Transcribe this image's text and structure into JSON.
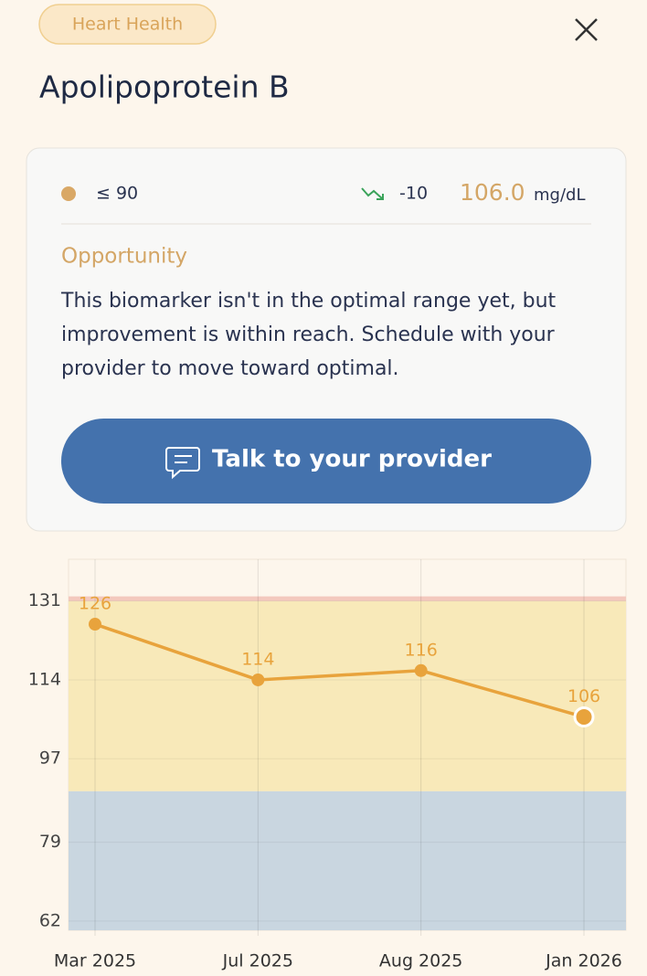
{
  "tag": "Heart Health",
  "title": "Apolipoprotein B",
  "card": {
    "range": "≤ 90",
    "change": "-10",
    "value": "106.0",
    "unit": "mg/dL",
    "status": "Opportunity",
    "message": "This biomarker isn't in the optimal range yet, but improvement is within reach. Schedule with your provider to move toward optimal.",
    "button": "Talk to your provider"
  },
  "chart_data": {
    "type": "line",
    "categories": [
      "Mar 2025",
      "Jul 2025",
      "Aug 2025",
      "Jan 2026"
    ],
    "series": [
      {
        "color": "#e8a33c",
        "values": [
          126,
          114,
          116,
          106
        ]
      }
    ],
    "ylim": [
      60,
      140
    ],
    "yticks": [
      62,
      79,
      97,
      114,
      131
    ],
    "grid": true,
    "bands": [
      {
        "from": 60,
        "to": 90,
        "color": "#c9d6e0"
      },
      {
        "from": 90,
        "to": 131,
        "color": "#f8e9b9"
      },
      {
        "from": 131,
        "to": 132,
        "color": "#f3c8bd"
      }
    ]
  }
}
